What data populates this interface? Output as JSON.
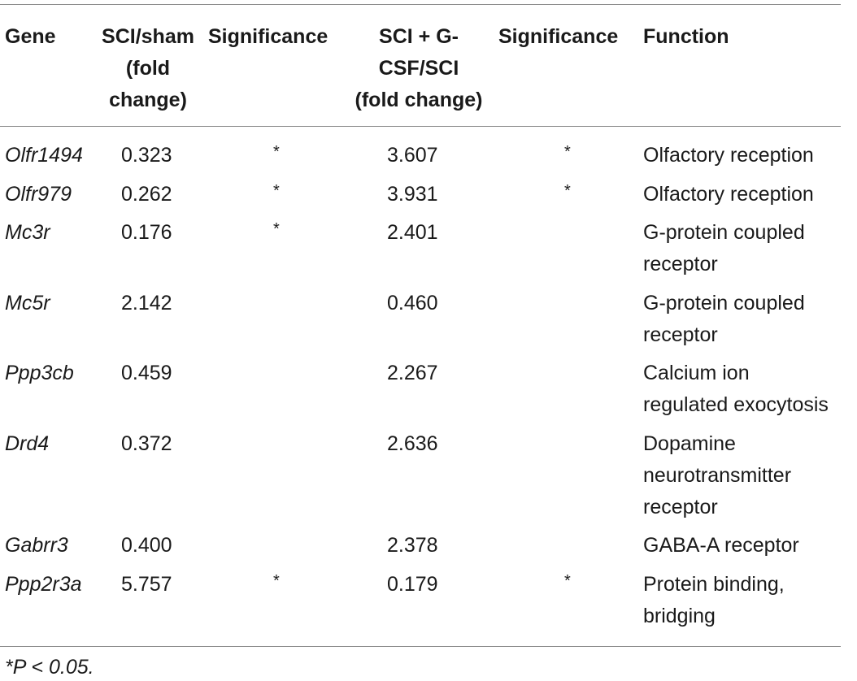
{
  "table": {
    "headers": {
      "gene": "Gene",
      "sci_sham": [
        "SCI/sham",
        "(fold",
        "change)"
      ],
      "significance1": "Significance",
      "sci_gcsf": [
        "SCI + G-",
        "CSF/SCI",
        "(fold change)"
      ],
      "significance2": "Significance",
      "function": "Function"
    },
    "rows": [
      {
        "gene": "Olfr1494",
        "sci_sham": "0.323",
        "sig1": "*",
        "sci_gcsf": "3.607",
        "sig2": "*",
        "function": [
          "Olfactory reception"
        ]
      },
      {
        "gene": "Olfr979",
        "sci_sham": "0.262",
        "sig1": "*",
        "sci_gcsf": "3.931",
        "sig2": "*",
        "function": [
          "Olfactory reception"
        ]
      },
      {
        "gene": "Mc3r",
        "sci_sham": "0.176",
        "sig1": "*",
        "sci_gcsf": "2.401",
        "sig2": "",
        "function": [
          "G-protein coupled",
          "receptor"
        ]
      },
      {
        "gene": "Mc5r",
        "sci_sham": "2.142",
        "sig1": "",
        "sci_gcsf": "0.460",
        "sig2": "",
        "function": [
          "G-protein coupled",
          "receptor"
        ]
      },
      {
        "gene": "Ppp3cb",
        "sci_sham": "0.459",
        "sig1": "",
        "sci_gcsf": "2.267",
        "sig2": "",
        "function": [
          "Calcium ion",
          "regulated exocytosis"
        ]
      },
      {
        "gene": "Drd4",
        "sci_sham": "0.372",
        "sig1": "",
        "sci_gcsf": "2.636",
        "sig2": "",
        "function": [
          "Dopamine",
          "neurotransmitter",
          "receptor"
        ]
      },
      {
        "gene": "Gabrr3",
        "sci_sham": "0.400",
        "sig1": "",
        "sci_gcsf": "2.378",
        "sig2": "",
        "function": [
          "GABA-A receptor"
        ]
      },
      {
        "gene": "Ppp2r3a",
        "sci_sham": "5.757",
        "sig1": "*",
        "sci_gcsf": "0.179",
        "sig2": "*",
        "function": [
          "Protein binding,",
          "bridging"
        ]
      }
    ]
  },
  "footnote": "*P < 0.05."
}
